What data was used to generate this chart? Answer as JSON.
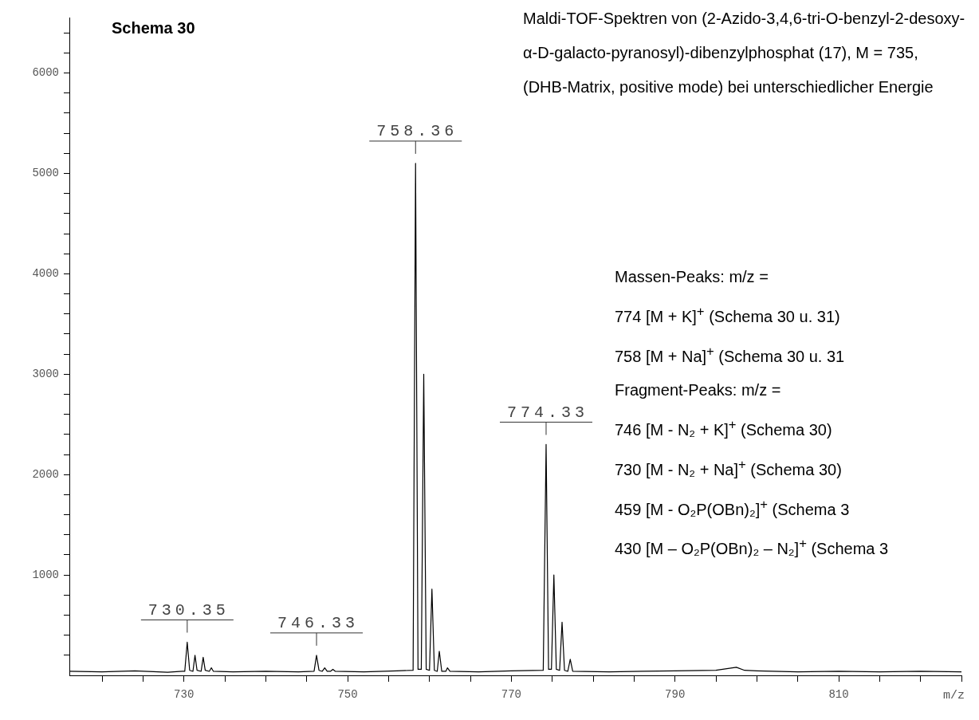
{
  "chart_data": {
    "type": "line",
    "title": "Schema 30",
    "xlabel": "m/z",
    "marker": "none",
    "xlim": [
      716,
      825
    ],
    "xticks": [
      {
        "value": 720,
        "label": null
      },
      {
        "value": 725,
        "label": null
      },
      730,
      {
        "value": 735,
        "label": null
      },
      {
        "value": 740,
        "label": null
      },
      {
        "value": 745,
        "label": null
      },
      750,
      {
        "value": 755,
        "label": null
      },
      {
        "value": 760,
        "label": null
      },
      {
        "value": 765,
        "label": null
      },
      770,
      {
        "value": 775,
        "label": null
      },
      {
        "value": 780,
        "label": null
      },
      {
        "value": 785,
        "label": null
      },
      790,
      {
        "value": 795,
        "label": null
      },
      {
        "value": 800,
        "label": null
      },
      {
        "value": 805,
        "label": null
      },
      810,
      {
        "value": 815,
        "label": null
      },
      {
        "value": 820,
        "label": null
      },
      {
        "value": 825,
        "label": null
      }
    ],
    "ylim": [
      0,
      6550
    ],
    "yticks": [
      {
        "value": 200,
        "label": null
      },
      {
        "value": 400,
        "label": null
      },
      {
        "value": 600,
        "label": null
      },
      {
        "value": 800,
        "label": null
      },
      1000,
      {
        "value": 1200,
        "label": null
      },
      {
        "value": 1400,
        "label": null
      },
      {
        "value": 1600,
        "label": null
      },
      {
        "value": 1800,
        "label": null
      },
      2000,
      {
        "value": 2200,
        "label": null
      },
      {
        "value": 2400,
        "label": null
      },
      {
        "value": 2600,
        "label": null
      },
      {
        "value": 2800,
        "label": null
      },
      3000,
      {
        "value": 3200,
        "label": null
      },
      {
        "value": 3400,
        "label": null
      },
      {
        "value": 3600,
        "label": null
      },
      {
        "value": 3800,
        "label": null
      },
      4000,
      {
        "value": 4200,
        "label": null
      },
      {
        "value": 4400,
        "label": null
      },
      {
        "value": 4600,
        "label": null
      },
      {
        "value": 4800,
        "label": null
      },
      5000,
      {
        "value": 5200,
        "label": null
      },
      {
        "value": 5400,
        "label": null
      },
      {
        "value": 5600,
        "label": null
      },
      {
        "value": 5800,
        "label": null
      },
      6000,
      {
        "value": 6200,
        "label": null
      },
      {
        "value": 6400,
        "label": null
      }
    ],
    "series": [
      {
        "color": "#000000",
        "x": [
          716,
          720,
          724,
          728,
          729.8,
          730.1,
          730.4,
          730.7,
          731.1,
          731.35,
          731.6,
          732.1,
          732.35,
          732.6,
          733.1,
          733.35,
          733.6,
          736,
          740,
          744,
          745.9,
          746.2,
          746.5,
          746.9,
          747.2,
          747.5,
          747.9,
          748.2,
          748.5,
          752,
          756,
          758.0,
          758.3,
          758.6,
          759.0,
          759.3,
          759.6,
          760.0,
          760.3,
          760.6,
          760.95,
          761.2,
          761.5,
          762.0,
          762.2,
          762.5,
          766,
          770,
          773.9,
          774.25,
          774.55,
          774.9,
          775.2,
          775.5,
          775.9,
          776.2,
          776.5,
          776.9,
          777.2,
          777.5,
          782,
          786,
          790,
          795,
          797.5,
          798.5,
          800,
          805,
          810,
          815,
          820,
          825
        ],
        "values": [
          40,
          35,
          45,
          30,
          40,
          40,
          330,
          50,
          40,
          200,
          50,
          40,
          180,
          50,
          40,
          75,
          40,
          35,
          40,
          35,
          40,
          200,
          50,
          40,
          75,
          40,
          40,
          60,
          40,
          35,
          45,
          50,
          5100,
          60,
          60,
          3000,
          60,
          50,
          860,
          50,
          40,
          240,
          40,
          40,
          75,
          40,
          35,
          45,
          50,
          2300,
          60,
          60,
          1000,
          60,
          50,
          530,
          50,
          40,
          160,
          40,
          35,
          40,
          45,
          50,
          80,
          50,
          45,
          35,
          40,
          35,
          40,
          35
        ]
      }
    ],
    "annotations": [
      {
        "text": "730.35",
        "x": 730.4,
        "y": 330
      },
      {
        "text": "746.33",
        "x": 746.2,
        "y": 200
      },
      {
        "text": "758.36",
        "x": 758.3,
        "y": 5100
      },
      {
        "text": "774.33",
        "x": 774.25,
        "y": 2300
      },
      "Maldi-TOF-Spektren von (2-Azido-3,4,6-tri-O-benzyl-2-desoxy-α-D-galacto-pyranosyl)-dibenzylphosphat (17), M = 735, (DHB-Matrix, positive mode) bei unterschiedlicher Energie",
      "Massen-Peaks: m/z =",
      "774 [M + K]$^{+}$ (Schema 30 u. 31)",
      "758 [M + Na]$^{+}$ (Schema 30 u. 31",
      "Fragment-Peaks: m/z =",
      "746 [M - N₂ + K]$^{+}$ (Schema 30)",
      "730 [M - N₂ + Na]$^{+}$ (Schema 30)",
      "459 [M - O₂P(OBn)₂]$^{+}$ (Schema 3",
      "430 [M – O₂P(OBn)₂ – N₂]$^{+}$ (Schema 3"
    ]
  }
}
